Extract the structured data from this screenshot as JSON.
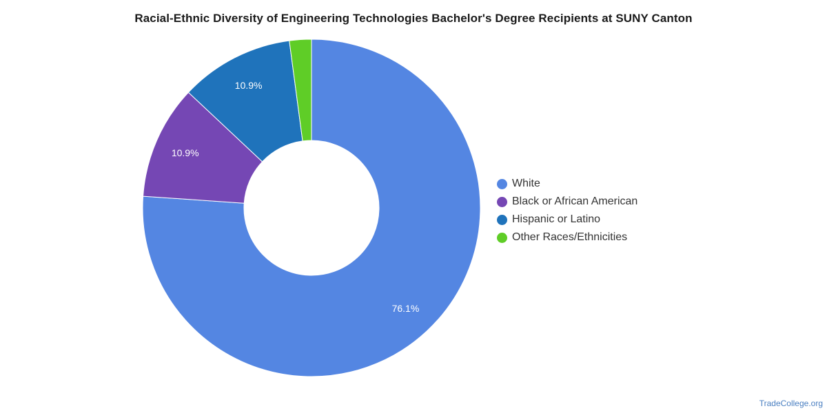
{
  "chart_data": {
    "type": "pie",
    "style": "donut",
    "title": "Racial-Ethnic Diversity of Engineering Technologies Bachelor's Degree Recipients at SUNY Canton",
    "categories": [
      "White",
      "Black or African American",
      "Hispanic or Latino",
      "Other Races/Ethnicities"
    ],
    "values": [
      76.1,
      10.9,
      10.9,
      2.1
    ],
    "value_labels": [
      "76.1%",
      "10.9%",
      "10.9%",
      ""
    ],
    "colors": [
      "#5486e2",
      "#7547b4",
      "#1f73bb",
      "#5fcd27"
    ],
    "legend": "right"
  },
  "footer": {
    "credit": "TradeCollege.org"
  }
}
